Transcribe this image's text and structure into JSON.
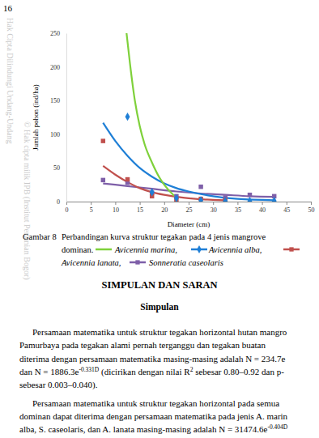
{
  "page_number": "16",
  "watermark": [
    "Hak Cipta Dilindungi Undang-Undang",
    "© Hak cipta milik IPB (Institut Pertanian Bogor)"
  ],
  "chart_data": {
    "type": "scatter",
    "x_label": "Diameter (cm)",
    "y_label": "Jumlah pohon (ind/ha)",
    "xlim": [
      0,
      50
    ],
    "xticks": [
      0,
      5,
      10,
      15,
      20,
      25,
      30,
      35,
      40,
      45,
      50
    ],
    "ylim": [
      0,
      250
    ],
    "yticks": [
      0,
      50,
      100,
      150,
      200,
      250
    ],
    "grid": false,
    "series": [
      {
        "name": "Avicennia marina,",
        "color": "#7fd13b",
        "marker": "none",
        "line_style": "solid",
        "x": [],
        "values": [],
        "fit": {
          "x": [
            12.3,
            13,
            14,
            15,
            16,
            17.5,
            19,
            20,
            22,
            22.5
          ],
          "values": [
            250,
            205,
            150,
            112,
            85,
            58,
            36,
            25,
            9,
            6
          ]
        }
      },
      {
        "name": "Avicennia  alba,",
        "color": "#1f7fd6",
        "marker": "diamond",
        "line_style": "solid",
        "x": [
          12.5,
          17.5,
          22.5,
          27.5,
          32.5,
          37.5,
          42.5
        ],
        "values": [
          126,
          14,
          5,
          2,
          1,
          1,
          1
        ],
        "fit": {
          "x": [
            7.5,
            10,
            12.5,
            15,
            17.5,
            20,
            22.5,
            25,
            30,
            35,
            42.5
          ],
          "values": [
            117,
            90,
            68,
            50,
            37,
            27,
            20,
            15,
            8,
            4,
            2
          ]
        }
      },
      {
        "name": "Avicennia lanata,",
        "color": "#c0504d",
        "marker": "square",
        "line_style": "solid",
        "x": [
          7.5,
          12.5,
          17.5,
          22.5,
          27.5,
          32.5
        ],
        "values": [
          90,
          33,
          8,
          3,
          4,
          2
        ],
        "fit": {
          "x": [
            7.5,
            10,
            12.5,
            15,
            17.5,
            20,
            22.5,
            25,
            30,
            32.5
          ],
          "values": [
            53,
            40,
            29,
            20,
            14,
            10,
            7,
            5,
            2.5,
            2
          ]
        }
      },
      {
        "name": "Sonneratia caseolaris",
        "color": "#7e5fa8",
        "marker": "square",
        "line_style": "solid",
        "x": [
          7.5,
          12.5,
          17.5,
          22.5,
          27.5,
          32.5,
          37.5,
          42.5
        ],
        "values": [
          32,
          28,
          13,
          8,
          22,
          6,
          10,
          8
        ],
        "fit": {
          "x": [
            7.5,
            12.5,
            17.5,
            22.5,
            27.5,
            32.5,
            37.5,
            42.5
          ],
          "values": [
            27,
            23,
            19,
            15,
            12,
            10,
            8,
            7
          ]
        }
      }
    ]
  },
  "caption": {
    "label": "Gambar 8",
    "text": "Perbandingan kurva struktur tegakan pada 4 jenis mangrove",
    "text2": "dominan."
  },
  "heading": "SIMPULAN DAN SARAN",
  "subheading": "Simpulan",
  "paragraph_lines": [
    [
      {
        "text": "Persamaan matematika untuk struktur tegakan horizontal hutan mangro"
      }
    ],
    [
      {
        "text": "Pamurbaya pada tegakan alami pernah terganggu dan tegakan buatan"
      }
    ],
    [
      {
        "text": "diterima dengan persamaan matematika masing-masing adalah N = 234.7e"
      }
    ],
    [
      {
        "text": "dan N = 1886.3e"
      },
      {
        "text": "-0.331D",
        "sup": true
      },
      {
        "text": " (dicirikan dengan nilai R"
      },
      {
        "text": "2",
        "sup": true
      },
      {
        "text": " sebesar 0.80–0.92 dan p-"
      }
    ],
    [
      {
        "text": "sebesar 0.003–0.040)."
      }
    ],
    [
      {
        "text": "Persamaan matematika untuk struktur tegakan horizontal pada semua"
      }
    ],
    [
      {
        "text": "dominan dapat diterima dengan persamaan matematika pada jenis A. marin"
      }
    ],
    [
      {
        "text": "alba, S. caseolaris, dan A. lanata masing-masing adalah N = 31474.6e"
      },
      {
        "text": "-0.404D",
        "sup": true
      }
    ]
  ]
}
